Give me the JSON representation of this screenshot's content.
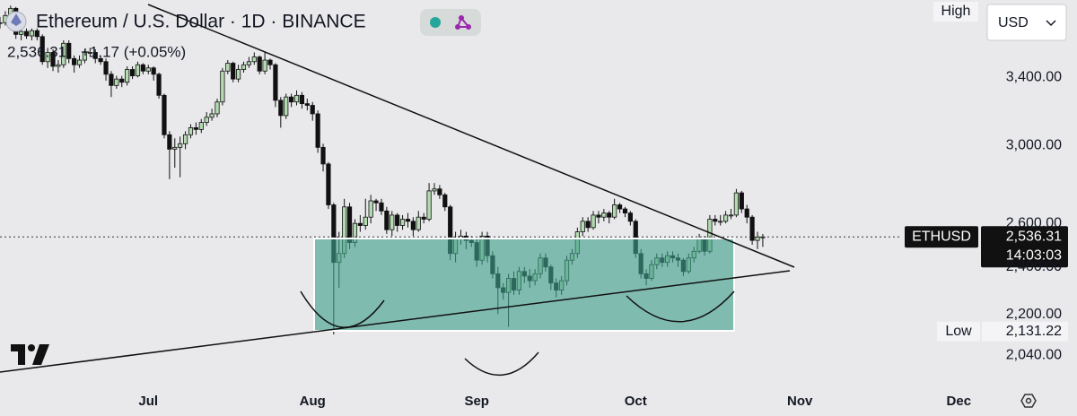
{
  "chart_data": {
    "type": "candlestick",
    "title": "Ethereum / U.S. Dollar · 1D · BINANCE",
    "change_label": "+1.17 (+0.05%)",
    "close": [
      3760,
      3810,
      3860,
      3680,
      3700,
      3670,
      3705,
      3665,
      3500,
      3560,
      3470,
      3480,
      3620,
      3520,
      3480,
      3510,
      3560,
      3560,
      3520,
      3500,
      3420,
      3350,
      3390,
      3370,
      3450,
      3410,
      3480,
      3440,
      3460,
      3420,
      3290,
      3060,
      2980,
      2990,
      3010,
      3060,
      3100,
      3090,
      3130,
      3160,
      3180,
      3250,
      3440,
      3490,
      3390,
      3450,
      3480,
      3500,
      3530,
      3440,
      3510,
      3480,
      3260,
      3170,
      3280,
      3250,
      3290,
      3240,
      3230,
      3180,
      2990,
      2900,
      2690,
      2420,
      2460,
      2680,
      2510,
      2600,
      2590,
      2630,
      2710,
      2700,
      2660,
      2570,
      2640,
      2590,
      2620,
      2610,
      2570,
      2630,
      2620,
      2760,
      2770,
      2740,
      2680,
      2460,
      2530,
      2540,
      2520,
      2510,
      2430,
      2540,
      2450,
      2370,
      2310,
      2290,
      2350,
      2300,
      2380,
      2360,
      2340,
      2370,
      2440,
      2400,
      2330,
      2300,
      2340,
      2430,
      2460,
      2560,
      2610,
      2580,
      2640,
      2630,
      2650,
      2630,
      2690,
      2670,
      2650,
      2610,
      2460,
      2370,
      2350,
      2410,
      2440,
      2420,
      2450,
      2440,
      2430,
      2380,
      2440,
      2470,
      2530,
      2470,
      2620,
      2610,
      2610,
      2640,
      2640,
      2750,
      2670,
      2630,
      2520,
      2535.14,
      2536.31
    ],
    "high": [
      3800,
      3840,
      3880,
      3870,
      3730,
      3720,
      3720,
      3720,
      3680,
      3590,
      3580,
      3510,
      3640,
      3640,
      3540,
      3540,
      3580,
      3590,
      3580,
      3540,
      3520,
      3440,
      3410,
      3410,
      3470,
      3470,
      3500,
      3490,
      3480,
      3470,
      3430,
      3300,
      3080,
      3040,
      3050,
      3080,
      3120,
      3130,
      3150,
      3190,
      3210,
      3270,
      3460,
      3510,
      3500,
      3480,
      3500,
      3530,
      3560,
      3540,
      3560,
      3520,
      3490,
      3280,
      3300,
      3300,
      3320,
      3310,
      3270,
      3250,
      3200,
      3010,
      2910,
      2700,
      2560,
      2720,
      2700,
      2620,
      2640,
      2720,
      2740,
      2720,
      2720,
      2680,
      2660,
      2650,
      2640,
      2650,
      2630,
      2660,
      2650,
      2800,
      2800,
      2790,
      2750,
      2690,
      2560,
      2570,
      2560,
      2540,
      2530,
      2560,
      2560,
      2470,
      2400,
      2330,
      2370,
      2380,
      2400,
      2400,
      2390,
      2390,
      2460,
      2460,
      2410,
      2350,
      2360,
      2450,
      2480,
      2580,
      2630,
      2630,
      2660,
      2660,
      2670,
      2660,
      2720,
      2700,
      2680,
      2660,
      2620,
      2480,
      2390,
      2430,
      2460,
      2460,
      2470,
      2470,
      2460,
      2440,
      2460,
      2490,
      2550,
      2540,
      2640,
      2640,
      2640,
      2660,
      2670,
      2770,
      2760,
      2690,
      2640,
      2560,
      2550
    ],
    "low": [
      3720,
      3740,
      3790,
      3650,
      3640,
      3650,
      3640,
      3640,
      3480,
      3460,
      3440,
      3430,
      3460,
      3490,
      3430,
      3460,
      3490,
      3530,
      3490,
      3480,
      3380,
      3280,
      3330,
      3340,
      3350,
      3390,
      3400,
      3420,
      3420,
      3380,
      3270,
      3040,
      2820,
      2880,
      2830,
      2980,
      3040,
      3060,
      3070,
      3110,
      3140,
      3160,
      3230,
      3420,
      3370,
      3370,
      3430,
      3460,
      3480,
      3420,
      3420,
      3450,
      3220,
      3100,
      3150,
      3220,
      3230,
      3210,
      3200,
      3140,
      2960,
      2860,
      2670,
      2120,
      2310,
      2440,
      2480,
      2490,
      2560,
      2570,
      2600,
      2660,
      2640,
      2550,
      2540,
      2560,
      2570,
      2580,
      2540,
      2560,
      2600,
      2610,
      2740,
      2720,
      2660,
      2430,
      2420,
      2500,
      2480,
      2490,
      2400,
      2410,
      2420,
      2350,
      2200,
      2260,
      2150,
      2280,
      2280,
      2330,
      2310,
      2320,
      2350,
      2380,
      2300,
      2270,
      2280,
      2320,
      2410,
      2440,
      2540,
      2560,
      2570,
      2600,
      2610,
      2600,
      2620,
      2650,
      2630,
      2590,
      2440,
      2350,
      2320,
      2340,
      2390,
      2400,
      2400,
      2420,
      2400,
      2360,
      2370,
      2420,
      2460,
      2450,
      2460,
      2590,
      2590,
      2600,
      2620,
      2630,
      2650,
      2600,
      2500,
      2480,
      2490
    ],
    "xlim": [
      0,
      184
    ],
    "xticks": [
      {
        "value": 28,
        "label": "Jul"
      },
      {
        "value": 59,
        "label": "Aug"
      },
      {
        "value": 90,
        "label": "Sep"
      },
      {
        "value": 120,
        "label": "Oct"
      },
      {
        "value": 151,
        "label": "Nov"
      },
      {
        "value": 181,
        "label": "Dec"
      }
    ],
    "ylim": [
      1930,
      3920
    ],
    "yticks": [
      {
        "value": 3400,
        "label": "3,400.00"
      },
      {
        "value": 3000,
        "label": "3,000.00"
      },
      {
        "value": 2600,
        "label": "2,600.00"
      },
      {
        "value": 2400,
        "label": "2,400.00"
      },
      {
        "value": 2200,
        "label": "2,200.00"
      },
      {
        "value": 2040,
        "label": "2,040.00"
      }
    ],
    "log_scale": true,
    "up_color": "#b3dbb0",
    "down_color": "#111111",
    "last_price": {
      "value": 2536.31,
      "label": "2,536.31"
    },
    "symbol_tag": "ETHUSD",
    "countdown": "14:03:03",
    "low_tag": {
      "value": 2131.22,
      "label": "2,131.22"
    },
    "high_text": "High",
    "low_text": "Low",
    "currency": "USD"
  }
}
